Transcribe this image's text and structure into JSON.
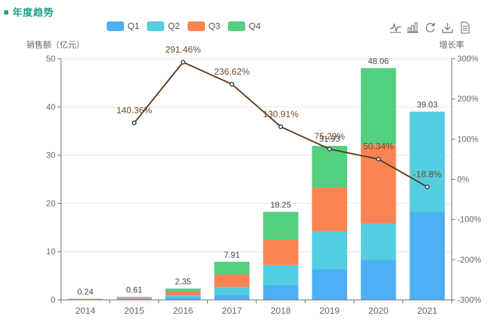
{
  "header": {
    "title": "年度趋势"
  },
  "toolbox": {
    "items": [
      {
        "icon": "line-chart-icon",
        "label": "切换为折线图"
      },
      {
        "icon": "bar-chart-icon",
        "label": "切换为柱状图"
      },
      {
        "icon": "restore-icon",
        "label": "还原"
      },
      {
        "icon": "download-icon",
        "label": "保存为图片"
      },
      {
        "icon": "data-view-icon",
        "label": "数据视图"
      }
    ]
  },
  "colors": {
    "Q1": "#4db0f6",
    "Q2": "#52cee0",
    "Q3": "#fc8452",
    "Q4": "#52cf80",
    "line": "#5a3a1a",
    "accent": "#1b9e8b"
  },
  "chart_data": {
    "type": "bar",
    "title": "年度趋势",
    "categories": [
      "2014",
      "2015",
      "2016",
      "2017",
      "2018",
      "2019",
      "2020",
      "2021"
    ],
    "series": [
      {
        "name": "Q1",
        "type": "bar",
        "stack": "total",
        "values": [
          0.06,
          0.15,
          0.5,
          1.0,
          3.1,
          6.4,
          8.3,
          18.3
        ]
      },
      {
        "name": "Q2",
        "type": "bar",
        "stack": "total",
        "values": [
          0.06,
          0.15,
          0.5,
          1.7,
          4.1,
          7.8,
          7.6,
          20.73
        ]
      },
      {
        "name": "Q3",
        "type": "bar",
        "stack": "total",
        "values": [
          0.06,
          0.15,
          0.65,
          2.6,
          5.4,
          9.1,
          16.3,
          0
        ]
      },
      {
        "name": "Q4",
        "type": "bar",
        "stack": "total",
        "values": [
          0.06,
          0.16,
          0.7,
          2.61,
          5.65,
          8.63,
          15.86,
          0
        ]
      },
      {
        "name": "增长率",
        "type": "line",
        "axis": "right",
        "values": [
          null,
          140.36,
          291.46,
          236.62,
          130.91,
          75.29,
          50.34,
          -18.8
        ],
        "labels": [
          "",
          "140.36%",
          "291.46%",
          "236.62%",
          "130.91%",
          "75.29%",
          "50.34%",
          "-18.8%"
        ]
      }
    ],
    "totals": [
      0.24,
      0.61,
      2.35,
      7.91,
      18.25,
      31.93,
      48.06,
      39.03
    ],
    "total_labels": [
      "0.24",
      "0.61",
      "2.35",
      "7.91",
      "18.25",
      "31.93",
      "48.06",
      "39.03"
    ],
    "legend": [
      "Q1",
      "Q2",
      "Q3",
      "Q4"
    ],
    "legend_position": "top-center",
    "ylabel": "销售额（亿元）",
    "ylim": [
      0,
      50
    ],
    "yticks": [
      "0",
      "10",
      "20",
      "30",
      "40",
      "50"
    ],
    "ylabel_right": "增长率",
    "ylim_right": [
      -300,
      300
    ],
    "yticks_right": [
      "-300%",
      "-200%",
      "-100%",
      "0%",
      "100%",
      "200%",
      "300%"
    ],
    "xlabel": "",
    "grid": true
  }
}
